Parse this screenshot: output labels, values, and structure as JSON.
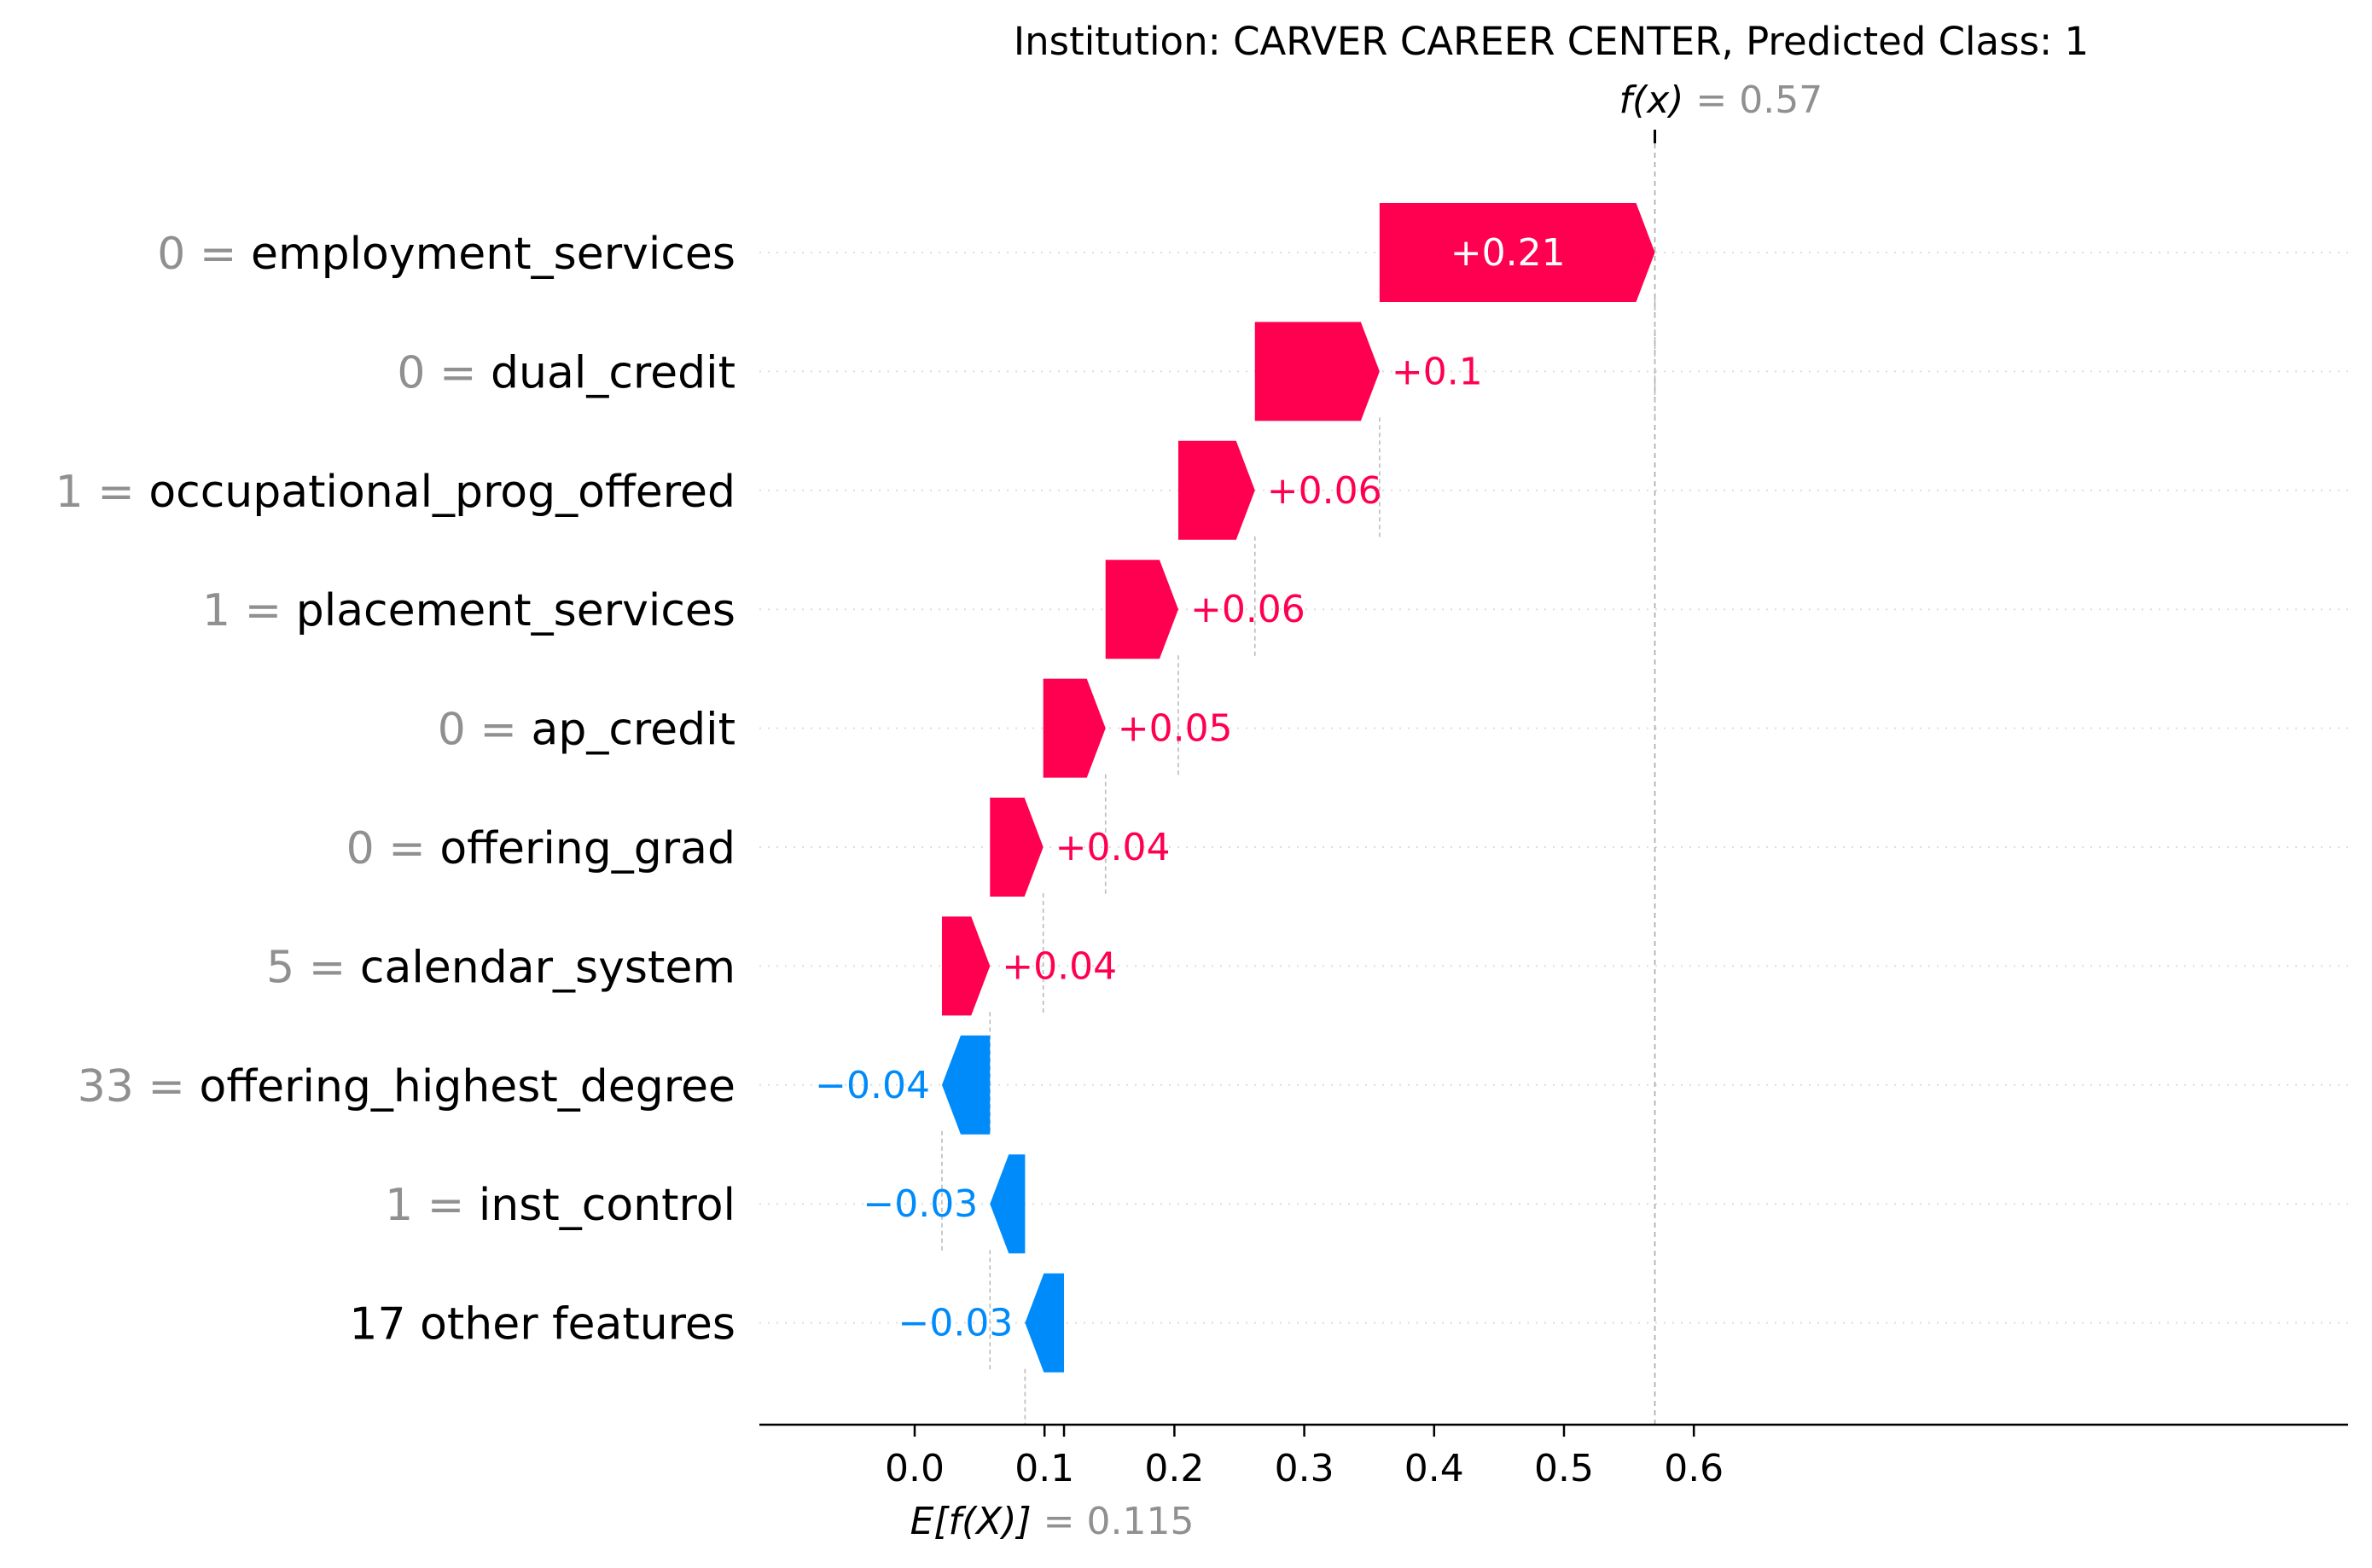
{
  "chart_data": {
    "type": "waterfall",
    "title": "Institution: CARVER CAREER CENTER, Predicted Class: 1",
    "base_value": 0.115,
    "base_value_label": "0.115",
    "base_value_prefix": "E[f(X)]",
    "output_value": 0.57,
    "output_value_label": "0.57",
    "output_value_prefix": "f(x)",
    "xlim": [
      -0.072,
      0.662
    ],
    "xticks": [
      0.0,
      0.1,
      0.2,
      0.3,
      0.4,
      0.5,
      0.6
    ],
    "xtick_labels": [
      "0.0",
      "0.1",
      "0.2",
      "0.3",
      "0.4",
      "0.5",
      "0.6"
    ],
    "grid": "dotted row lines",
    "colors": {
      "positive": "#ff0051",
      "negative": "#008bfb",
      "muted": "#909090",
      "axis": "#000000"
    },
    "rows": [
      {
        "feature_value": "0",
        "feature": "employment_services",
        "start": 0.358,
        "end": 0.57,
        "label": "+0.21"
      },
      {
        "feature_value": "0",
        "feature": "dual_credit",
        "start": 0.262,
        "end": 0.358,
        "label": "+0.1"
      },
      {
        "feature_value": "1",
        "feature": "occupational_prog_offered",
        "start": 0.203,
        "end": 0.262,
        "label": "+0.06"
      },
      {
        "feature_value": "1",
        "feature": "placement_services",
        "start": 0.147,
        "end": 0.203,
        "label": "+0.06"
      },
      {
        "feature_value": "0",
        "feature": "ap_credit",
        "start": 0.099,
        "end": 0.147,
        "label": "+0.05"
      },
      {
        "feature_value": "0",
        "feature": "offering_grad",
        "start": 0.058,
        "end": 0.099,
        "label": "+0.04"
      },
      {
        "feature_value": "5",
        "feature": "calendar_system",
        "start": 0.021,
        "end": 0.058,
        "label": "+0.04"
      },
      {
        "feature_value": "33",
        "feature": "offering_highest_degree",
        "start": 0.058,
        "end": 0.021,
        "label": "−0.04"
      },
      {
        "feature_value": "1",
        "feature": "inst_control",
        "start": 0.085,
        "end": 0.058,
        "label": "−0.03"
      },
      {
        "feature_value": "",
        "feature": "17 other features",
        "start": 0.115,
        "end": 0.085,
        "label": "−0.03"
      }
    ]
  }
}
